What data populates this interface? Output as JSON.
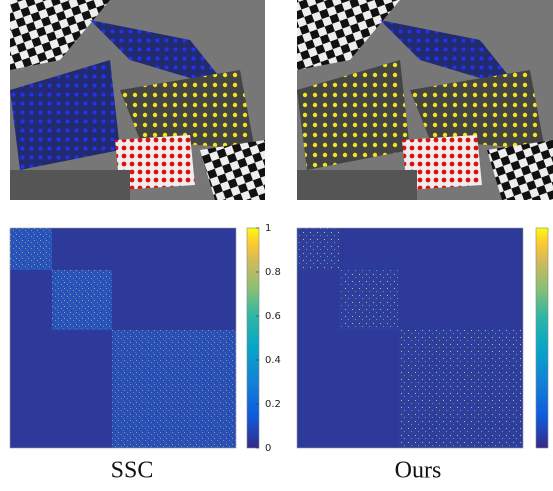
{
  "panels": [
    {
      "label": "SSC",
      "colorbar_ticks": [
        0,
        0.2,
        0.4,
        0.6,
        0.8,
        1
      ]
    },
    {
      "label": "Ours"
    }
  ]
}
